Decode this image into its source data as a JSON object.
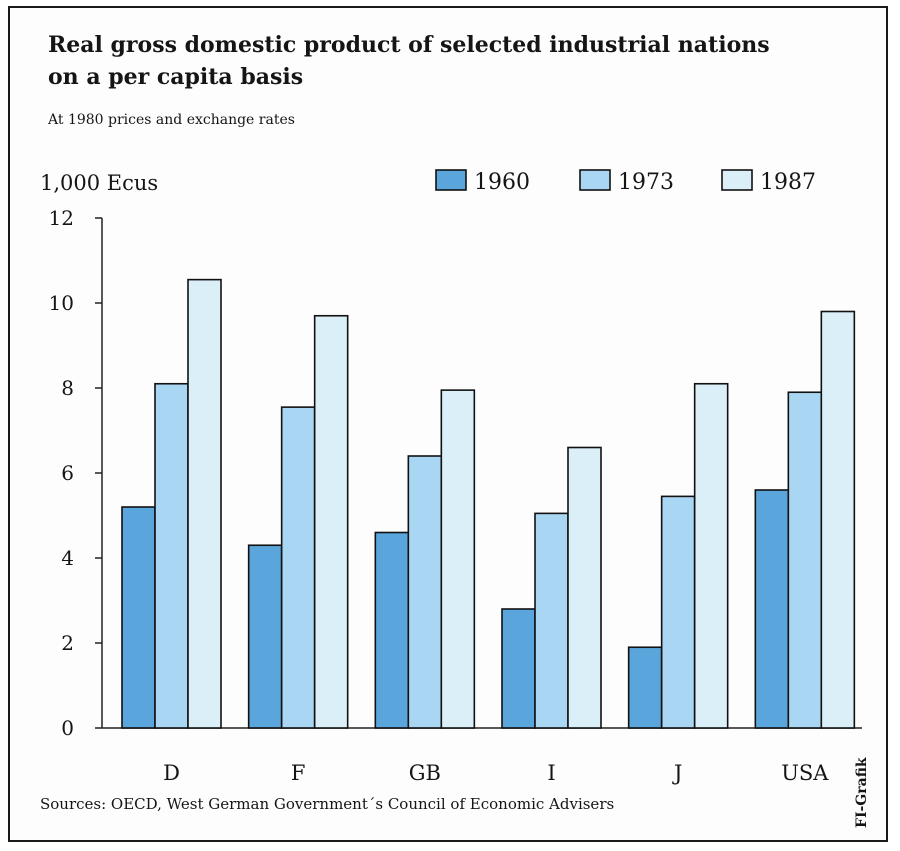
{
  "chart_data": {
    "type": "bar",
    "title": "Real gross domestic product of selected industrial nations",
    "title_line2": "on a per capita basis",
    "subtitle": "At 1980 prices and exchange rates",
    "ylabel": "1,000 Ecus",
    "xlabel": "",
    "ylim": [
      0,
      12
    ],
    "yticks": [
      0,
      2,
      4,
      6,
      8,
      10,
      12
    ],
    "categories": [
      "D",
      "F",
      "GB",
      "I",
      "J",
      "USA"
    ],
    "series": [
      {
        "name": "1960",
        "values": [
          5.2,
          4.3,
          4.6,
          2.8,
          1.9,
          5.6
        ],
        "color": "#5aa6dc"
      },
      {
        "name": "1973",
        "values": [
          8.1,
          7.55,
          6.4,
          5.05,
          5.45,
          7.9
        ],
        "color": "#a9d6f2"
      },
      {
        "name": "1987",
        "values": [
          10.55,
          9.7,
          7.95,
          6.6,
          8.1,
          9.8
        ],
        "color": "#dbeff8"
      }
    ],
    "legend_position": "top-right",
    "grid": false,
    "source": "Sources:  OECD, West German Government´s Council of Economic Advisers",
    "credit": "FI-Grafik"
  }
}
